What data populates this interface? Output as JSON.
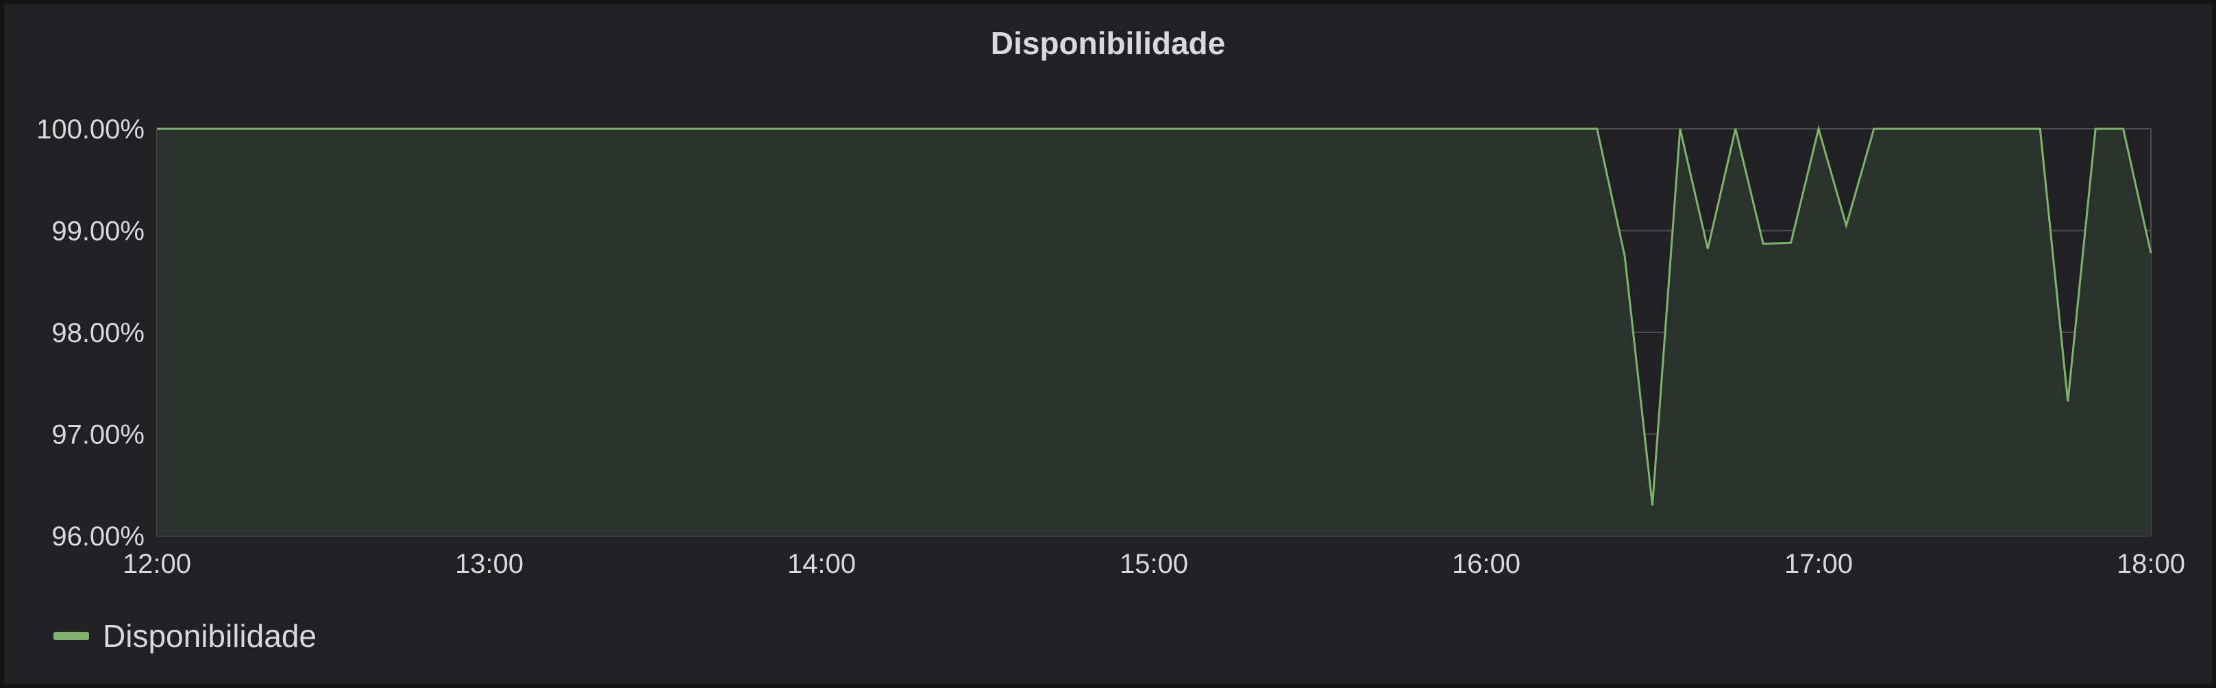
{
  "panel": {
    "title": "Disponibilidade"
  },
  "colors": {
    "series": "#7eb26d",
    "fill": "#2b322e",
    "grid": "#4a4d50",
    "background": "#212124"
  },
  "chart_data": {
    "type": "area",
    "title": "Disponibilidade",
    "xlabel": "",
    "ylabel": "",
    "xlim": [
      "12:00",
      "18:00"
    ],
    "ylim": [
      96.0,
      100.0
    ],
    "x_ticks": [
      "12:00",
      "13:00",
      "14:00",
      "15:00",
      "16:00",
      "17:00",
      "18:00"
    ],
    "y_ticks": [
      "96.00%",
      "97.00%",
      "98.00%",
      "99.00%",
      "100.00%"
    ],
    "grid": true,
    "legend_placement": "bottom-left",
    "series": [
      {
        "name": "Disponibilidade",
        "x": [
          "12:00",
          "16:20",
          "16:25",
          "16:30",
          "16:35",
          "16:40",
          "16:45",
          "16:50",
          "16:55",
          "17:00",
          "17:05",
          "17:10",
          "17:40",
          "17:45",
          "17:50",
          "17:55",
          "18:00"
        ],
        "values": [
          100.0,
          100.0,
          98.75,
          96.3,
          100.0,
          98.82,
          100.0,
          98.87,
          98.88,
          100.0,
          99.05,
          100.0,
          100.0,
          97.32,
          100.0,
          100.0,
          98.78
        ]
      }
    ]
  },
  "legend": {
    "items": [
      {
        "label": "Disponibilidade"
      }
    ]
  }
}
